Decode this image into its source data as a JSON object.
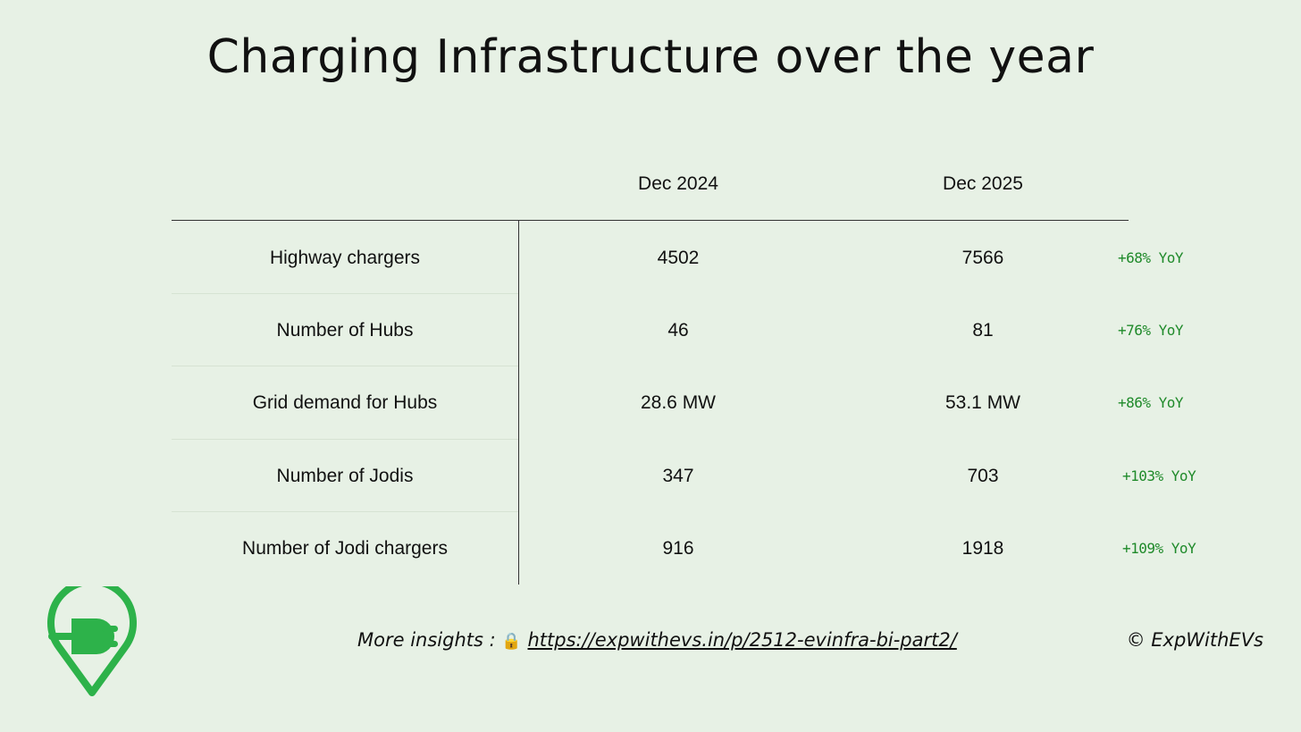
{
  "title": "Charging Infrastructure over the year",
  "columns": [
    "Dec 2024",
    "Dec 2025"
  ],
  "rows": [
    {
      "label": "Highway chargers",
      "dec2024": "4502",
      "dec2025": "7566",
      "yoy": "+68% YoY"
    },
    {
      "label": "Number of Hubs",
      "dec2024": "46",
      "dec2025": "81",
      "yoy": "+76% YoY"
    },
    {
      "label": "Grid demand for Hubs",
      "dec2024": "28.6 MW",
      "dec2025": "53.1 MW",
      "yoy": "+86% YoY"
    },
    {
      "label": "Number of Jodis",
      "dec2024": "347",
      "dec2025": "703",
      "yoy": "+103% YoY"
    },
    {
      "label": "Number of Jodi chargers",
      "dec2024": "916",
      "dec2025": "1918",
      "yoy": "+109% YoY"
    }
  ],
  "footer": {
    "prefix": "More insights :",
    "lock_icon": "🔒",
    "link_text": "https://expwithevs.in/p/2512-evinfra-bi-part2/",
    "copyright": "© ExpWithEVs"
  },
  "colors": {
    "background": "#e7f1e5",
    "yoy_green": "#1f8a2a",
    "logo_green": "#2db24a"
  },
  "logo_icon": "ev-charging-plug-pin-icon"
}
